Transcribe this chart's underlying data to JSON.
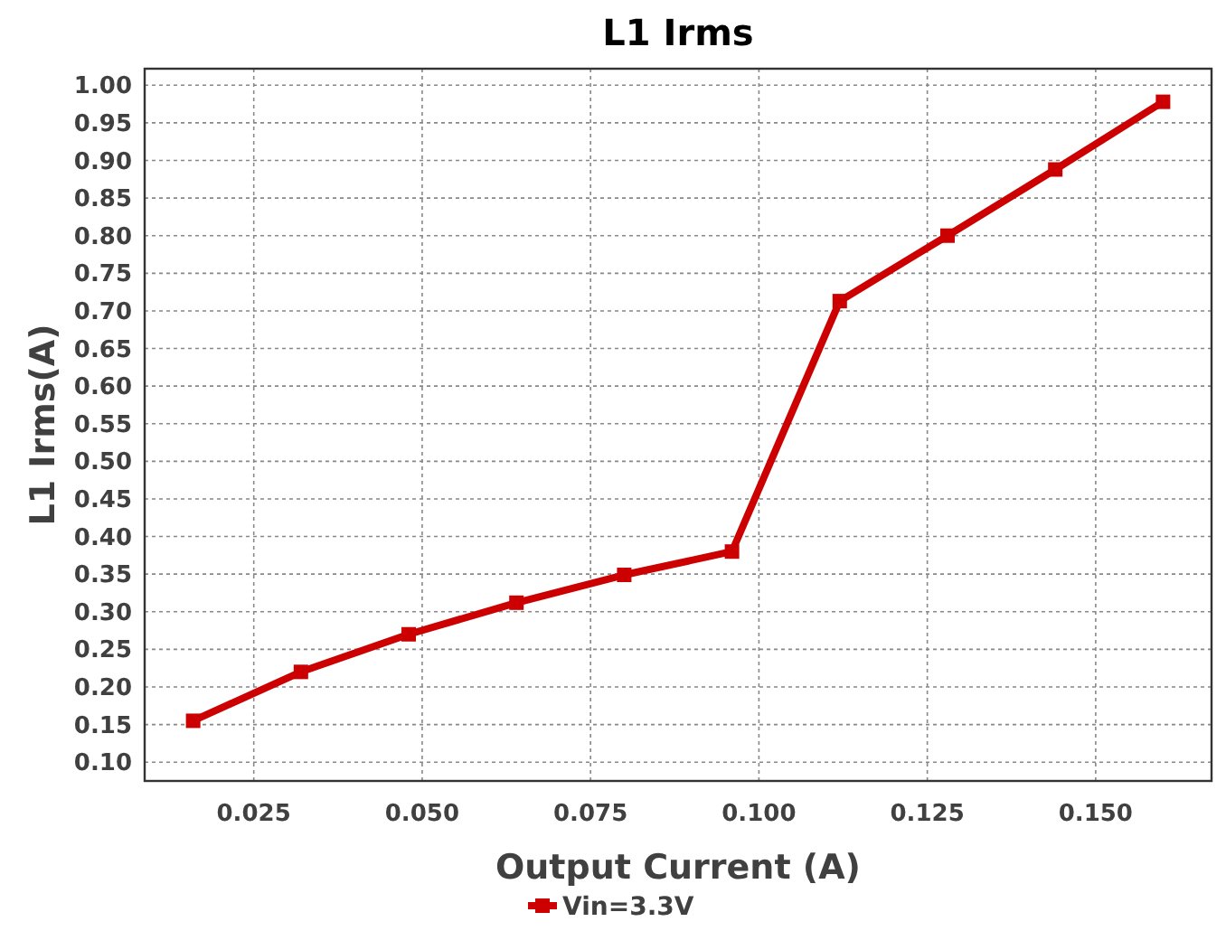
{
  "chart_data": {
    "type": "line",
    "title": "L1 Irms",
    "xlabel": "Output Current (A)",
    "ylabel": "L1 Irms(A)",
    "x": [
      0.016,
      0.032,
      0.048,
      0.064,
      0.08,
      0.096,
      0.112,
      0.128,
      0.144,
      0.16
    ],
    "series": [
      {
        "name": "Vin=3.3V",
        "color": "#cc0000",
        "values": [
          0.155,
          0.22,
          0.27,
          0.312,
          0.349,
          0.38,
          0.713,
          0.8,
          0.888,
          0.978
        ]
      }
    ],
    "xlim": [
      0.0088,
      0.1672
    ],
    "xticks": [
      {
        "value": 0.025,
        "label": "0.025"
      },
      {
        "value": 0.05,
        "label": "0.050"
      },
      {
        "value": 0.075,
        "label": "0.075"
      },
      {
        "value": 0.1,
        "label": "0.100"
      },
      {
        "value": 0.125,
        "label": "0.125"
      },
      {
        "value": 0.15,
        "label": "0.150"
      }
    ],
    "ylim": [
      0.075,
      1.022
    ],
    "yticks": [
      {
        "value": 0.1,
        "label": "0.10"
      },
      {
        "value": 0.15,
        "label": "0.15"
      },
      {
        "value": 0.2,
        "label": "0.20"
      },
      {
        "value": 0.25,
        "label": "0.25"
      },
      {
        "value": 0.3,
        "label": "0.30"
      },
      {
        "value": 0.35,
        "label": "0.35"
      },
      {
        "value": 0.4,
        "label": "0.40"
      },
      {
        "value": 0.45,
        "label": "0.45"
      },
      {
        "value": 0.5,
        "label": "0.50"
      },
      {
        "value": 0.55,
        "label": "0.55"
      },
      {
        "value": 0.6,
        "label": "0.60"
      },
      {
        "value": 0.65,
        "label": "0.65"
      },
      {
        "value": 0.7,
        "label": "0.70"
      },
      {
        "value": 0.75,
        "label": "0.75"
      },
      {
        "value": 0.8,
        "label": "0.80"
      },
      {
        "value": 0.85,
        "label": "0.85"
      },
      {
        "value": 0.9,
        "label": "0.90"
      },
      {
        "value": 0.95,
        "label": "0.95"
      },
      {
        "value": 1.0,
        "label": "1.00"
      }
    ],
    "grid": true,
    "legend": "bottom",
    "marker": "square",
    "line_style": "solid"
  }
}
